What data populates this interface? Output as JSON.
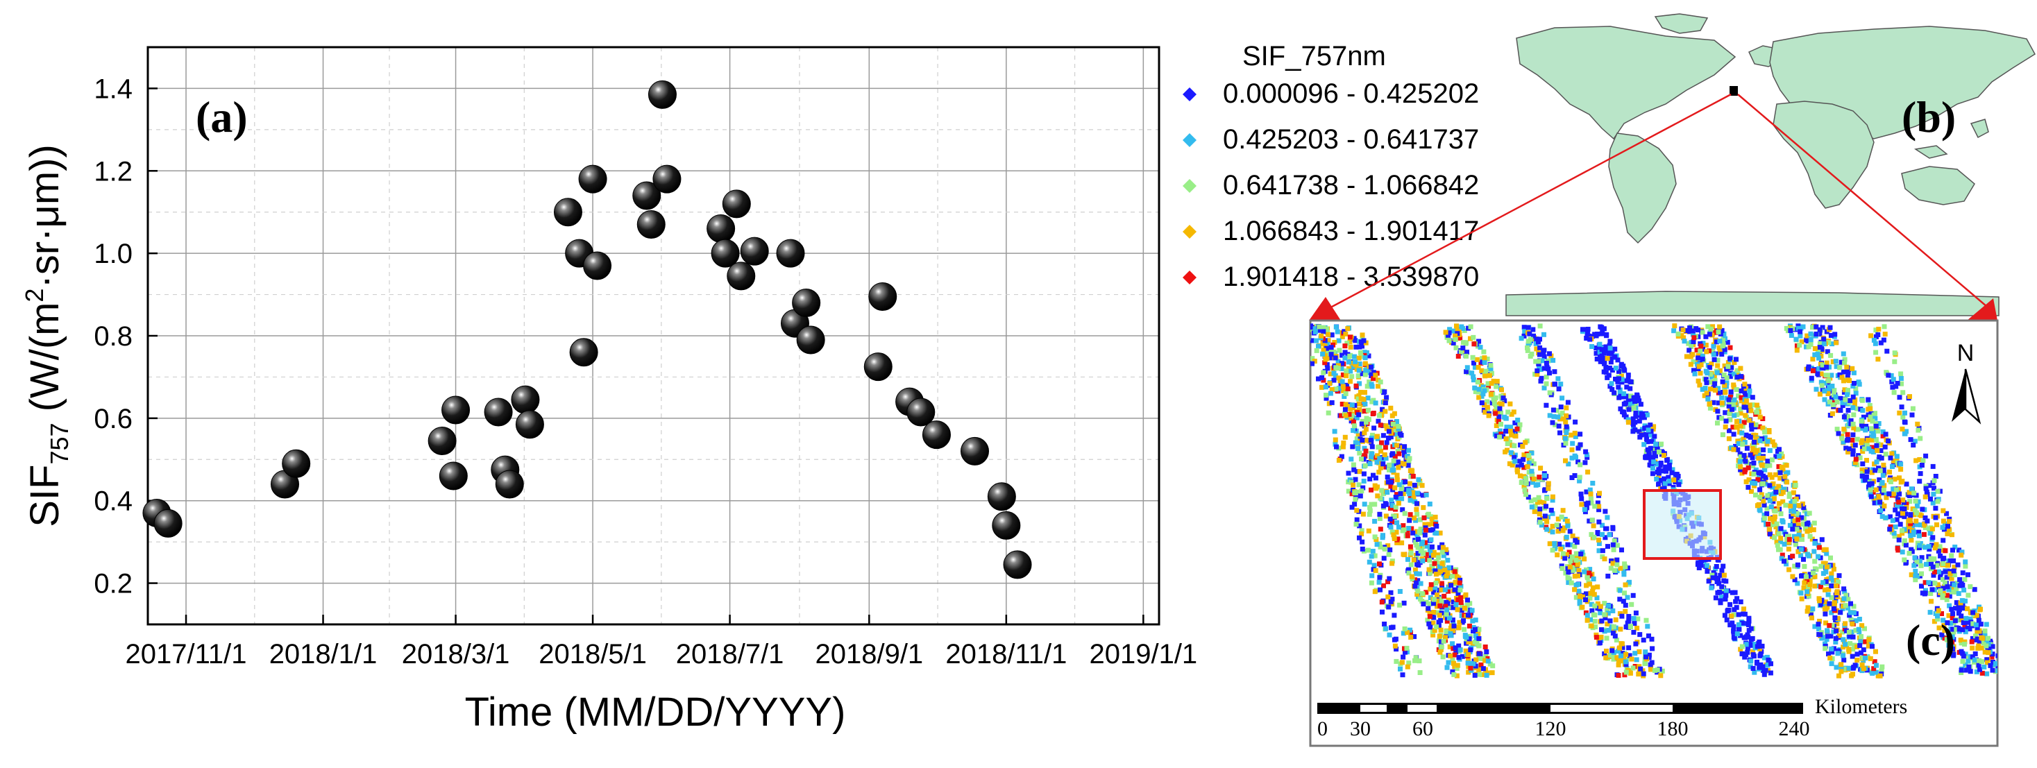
{
  "panel_a": {
    "label": "(a)",
    "chart_data": {
      "type": "scatter",
      "title": "",
      "xlabel": "Time (MM/DD/YYYY)",
      "ylabel_main": "SIF",
      "ylabel_sub": "757",
      "ylabel_units_pre": " (W/(m",
      "ylabel_units_sup": "2",
      "ylabel_units_post": "·sr·μm))",
      "xlim_days": [
        -17,
        433
      ],
      "ylim": [
        0.1,
        1.5
      ],
      "grid": true,
      "marker": "black-sphere",
      "x_ticks": [
        {
          "day": 0,
          "label": "2017/11/1"
        },
        {
          "day": 61,
          "label": "2018/1/1"
        },
        {
          "day": 120,
          "label": "2018/3/1"
        },
        {
          "day": 181,
          "label": "2018/5/1"
        },
        {
          "day": 242,
          "label": "2018/7/1"
        },
        {
          "day": 304,
          "label": "2018/9/1"
        },
        {
          "day": 365,
          "label": "2018/11/1"
        },
        {
          "day": 426,
          "label": "2019/1/1"
        }
      ],
      "y_ticks": [
        {
          "value": 0.2,
          "label": "0.2"
        },
        {
          "value": 0.4,
          "label": "0.4"
        },
        {
          "value": 0.6,
          "label": "0.6"
        },
        {
          "value": 0.8,
          "label": "0.8"
        },
        {
          "value": 1.0,
          "label": "1.0"
        },
        {
          "value": 1.2,
          "label": "1.2"
        },
        {
          "value": 1.4,
          "label": "1.4"
        }
      ],
      "x_unit": "days since 2017-11-01",
      "points": [
        {
          "x": -13,
          "y": 0.37
        },
        {
          "x": -8,
          "y": 0.345
        },
        {
          "x": 44,
          "y": 0.44
        },
        {
          "x": 49,
          "y": 0.49
        },
        {
          "x": 114,
          "y": 0.545
        },
        {
          "x": 119,
          "y": 0.46
        },
        {
          "x": 120,
          "y": 0.62
        },
        {
          "x": 139,
          "y": 0.615
        },
        {
          "x": 142,
          "y": 0.475
        },
        {
          "x": 144,
          "y": 0.44
        },
        {
          "x": 151,
          "y": 0.645
        },
        {
          "x": 153,
          "y": 0.585
        },
        {
          "x": 170,
          "y": 1.1
        },
        {
          "x": 175,
          "y": 1.0
        },
        {
          "x": 177,
          "y": 0.76
        },
        {
          "x": 181,
          "y": 1.18
        },
        {
          "x": 183,
          "y": 0.97
        },
        {
          "x": 205,
          "y": 1.14
        },
        {
          "x": 207,
          "y": 1.07
        },
        {
          "x": 212,
          "y": 1.385
        },
        {
          "x": 214,
          "y": 1.18
        },
        {
          "x": 238,
          "y": 1.06
        },
        {
          "x": 240,
          "y": 1.0
        },
        {
          "x": 245,
          "y": 1.12
        },
        {
          "x": 247,
          "y": 0.945
        },
        {
          "x": 253,
          "y": 1.005
        },
        {
          "x": 269,
          "y": 1.0
        },
        {
          "x": 271,
          "y": 0.83
        },
        {
          "x": 276,
          "y": 0.88
        },
        {
          "x": 278,
          "y": 0.79
        },
        {
          "x": 308,
          "y": 0.725
        },
        {
          "x": 310,
          "y": 0.895
        },
        {
          "x": 322,
          "y": 0.64
        },
        {
          "x": 327,
          "y": 0.615
        },
        {
          "x": 334,
          "y": 0.56
        },
        {
          "x": 351,
          "y": 0.52
        },
        {
          "x": 363,
          "y": 0.41
        },
        {
          "x": 365,
          "y": 0.34
        },
        {
          "x": 370,
          "y": 0.245
        }
      ]
    }
  },
  "legend": {
    "title": "SIF_757nm",
    "items": [
      {
        "label": "0.000096 - 0.425202",
        "color": "#1a1aff"
      },
      {
        "label": "0.425203 - 0.641737",
        "color": "#33bbee"
      },
      {
        "label": "0.641738 - 1.066842",
        "color": "#99ee88"
      },
      {
        "label": "1.066843 - 1.901417",
        "color": "#f5b800"
      },
      {
        "label": "1.901418 - 3.539870",
        "color": "#ee1111"
      }
    ]
  },
  "panel_b": {
    "label": "(b)",
    "land_color": "#b9e5c8",
    "callout_color": "#e31a1c"
  },
  "panel_c": {
    "label": "(c)",
    "north_label": "N",
    "scalebar": {
      "unit": "Kilometers",
      "ticks": [
        "0",
        "30",
        "60",
        "120",
        "180",
        "240"
      ]
    },
    "roi_color": "#e31a1c"
  }
}
